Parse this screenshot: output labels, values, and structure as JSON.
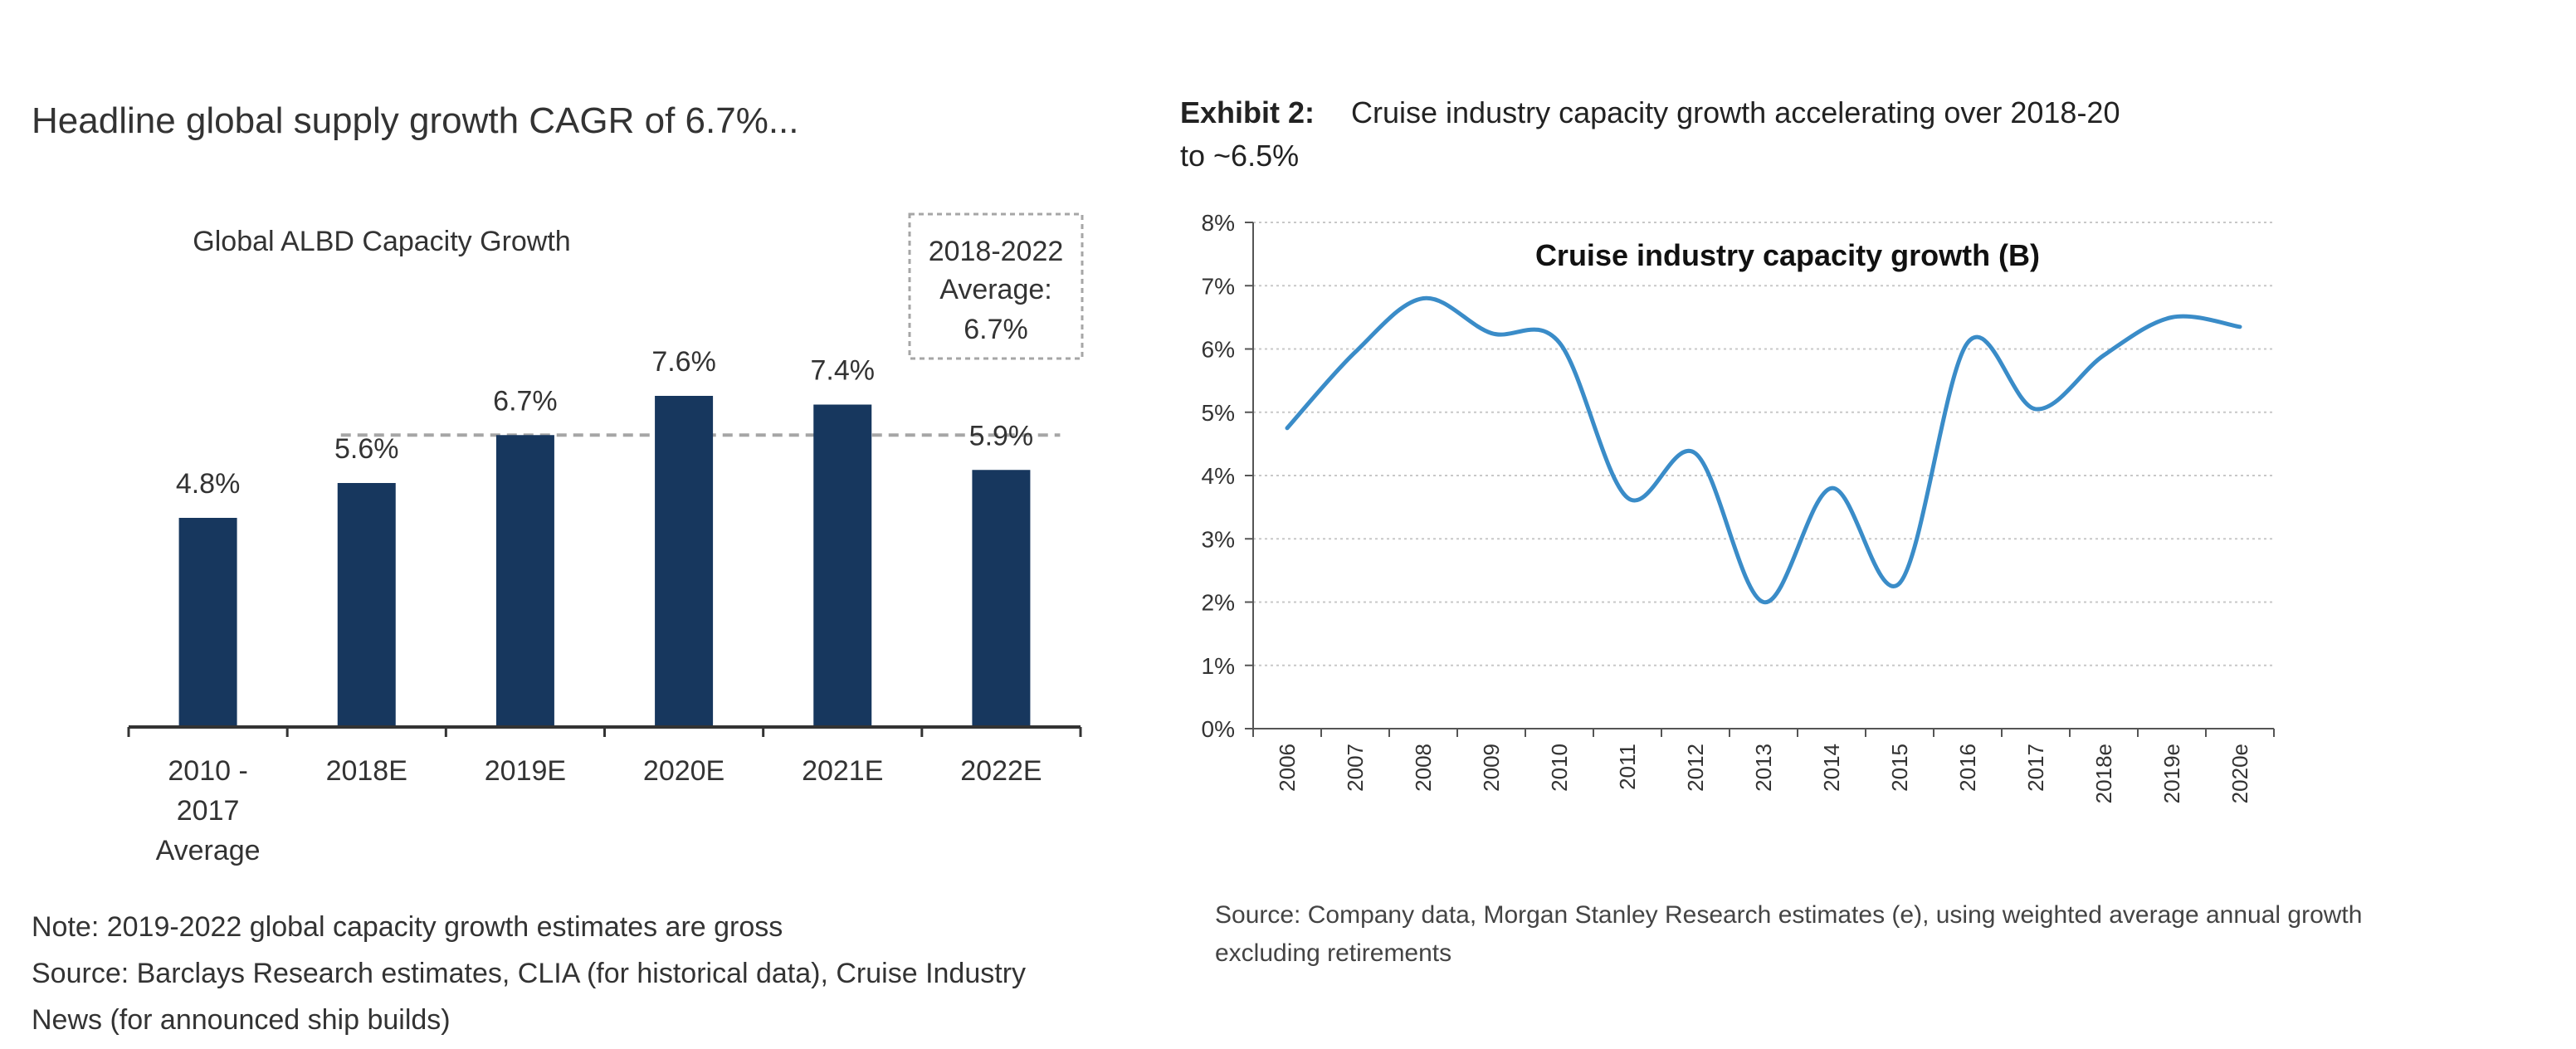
{
  "left_panel": {
    "heading": "Headline global supply growth CAGR of 6.7%...",
    "notes": [
      "Note: 2019-2022 global capacity growth estimates are gross",
      "Source: Barclays Research estimates, CLIA (for historical data), Cruise Industry",
      "News (for announced ship builds)"
    ]
  },
  "right_panel": {
    "exhibit_label": "Exhibit 2:",
    "exhibit_title_line1": "Cruise industry capacity growth accelerating over 2018-20",
    "exhibit_title_line2": "to ~6.5%",
    "source_lines": [
      "Source: Company data, Morgan Stanley Research estimates (e), using weighted average annual growth",
      "excluding retirements"
    ]
  },
  "colors": {
    "bar": "#17375e",
    "line": "#3a8cc8",
    "average_line": "#a6a6a6",
    "text": "#333333"
  },
  "chart_data": [
    {
      "type": "bar",
      "title": "Global ALBD Capacity Growth",
      "categories": [
        [
          "2010 -",
          "2017",
          "Average"
        ],
        [
          "2018E"
        ],
        [
          "2019E"
        ],
        [
          "2020E"
        ],
        [
          "2021E"
        ],
        [
          "2022E"
        ]
      ],
      "values": [
        4.8,
        5.6,
        6.7,
        7.6,
        7.4,
        5.9
      ],
      "value_labels": [
        "4.8%",
        "5.6%",
        "6.7%",
        "7.6%",
        "7.4%",
        "5.9%"
      ],
      "average_box": [
        "2018-2022",
        "Average:",
        "6.7%"
      ],
      "average_value": 6.7,
      "ylim": [
        0,
        10
      ],
      "xlabel": "",
      "ylabel": ""
    },
    {
      "type": "line",
      "title": "Cruise industry capacity growth (B)",
      "x": [
        "2006",
        "2007",
        "2008",
        "2009",
        "2010",
        "2011",
        "2012",
        "2013",
        "2014",
        "2015",
        "2016",
        "2017",
        "2018e",
        "2019e",
        "2020e"
      ],
      "values": [
        4.75,
        5.95,
        6.8,
        6.25,
        6.1,
        3.65,
        4.35,
        2.0,
        3.8,
        2.3,
        6.1,
        5.05,
        5.9,
        6.5,
        6.35
      ],
      "ylim": [
        0,
        8
      ],
      "yticks": [
        "0%",
        "1%",
        "2%",
        "3%",
        "4%",
        "5%",
        "6%",
        "7%",
        "8%"
      ],
      "grid": true,
      "xlabel": "",
      "ylabel": ""
    }
  ]
}
